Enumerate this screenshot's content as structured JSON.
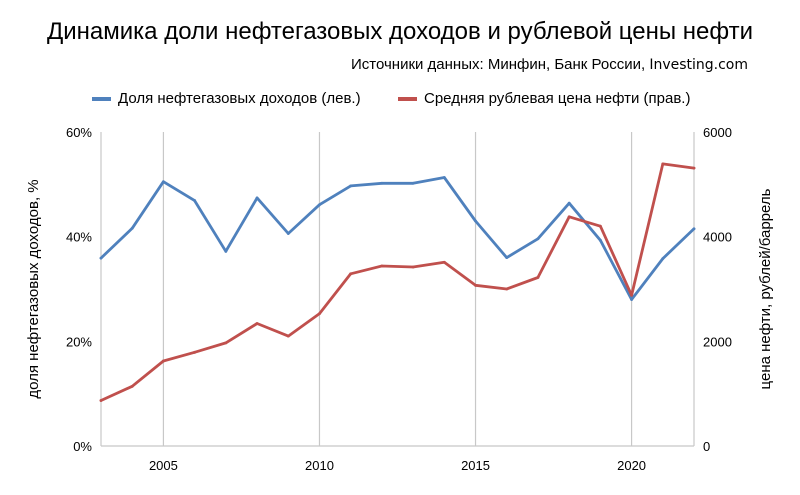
{
  "chart_data": {
    "type": "line",
    "title": "Динамика доли нефтегазовых доходов и рублевой цены нефти",
    "subtitle_prefix": "Источники данных: Минфин, Банк России, ",
    "subtitle_source": "Investing.com",
    "xlabel": "",
    "ylabel_left": "доля нефтегазовых доходов, %",
    "ylabel_right": "цена нефти, рублей/баррель",
    "x": [
      2003,
      2004,
      2005,
      2006,
      2007,
      2008,
      2009,
      2010,
      2011,
      2012,
      2013,
      2014,
      2015,
      2016,
      2017,
      2018,
      2019,
      2020,
      2021,
      2022
    ],
    "xlim": [
      2003,
      2022
    ],
    "x_ticks": [
      2005,
      2010,
      2015,
      2020
    ],
    "ylim_left": [
      0,
      60
    ],
    "y_ticks_left": [
      0,
      20,
      40,
      60
    ],
    "y_tick_labels_left": [
      "0%",
      "20%",
      "40%",
      "60%"
    ],
    "ylim_right": [
      0,
      6000
    ],
    "y_ticks_right": [
      0,
      2000,
      4000,
      6000
    ],
    "y_tick_labels_right": [
      "0",
      "2000",
      "4000",
      "6000"
    ],
    "grid": "vertical",
    "legend_position": "top",
    "series": [
      {
        "name": "Доля нефтегазовых доходов (лев.)",
        "axis": "left",
        "color": "#4f81bd",
        "values": [
          35.9,
          41.6,
          50.5,
          46.9,
          37.2,
          47.4,
          40.6,
          46.1,
          49.7,
          50.2,
          50.2,
          51.3,
          43.0,
          36.0,
          39.6,
          46.4,
          39.3,
          28.0,
          35.8,
          41.5
        ]
      },
      {
        "name": "Средняя рублевая цена нефти (прав.)",
        "axis": "right",
        "color": "#c0504d",
        "values": [
          870,
          1140,
          1625,
          1790,
          1970,
          2340,
          2100,
          2530,
          3290,
          3440,
          3420,
          3510,
          3070,
          3000,
          3220,
          4380,
          4200,
          2880,
          5390,
          5310
        ]
      }
    ]
  }
}
